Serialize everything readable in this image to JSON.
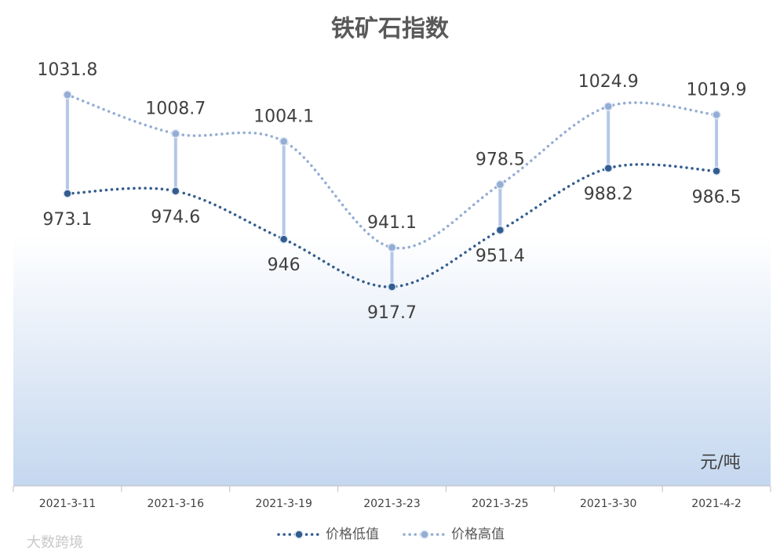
{
  "chart_data": {
    "type": "line",
    "title": "铁矿石指数",
    "unit_label": "元/吨",
    "categories": [
      "2021-3-11",
      "2021-3-16",
      "2021-3-19",
      "2021-3-23",
      "2021-3-25",
      "2021-3-30",
      "2021-4-2"
    ],
    "series": [
      {
        "name": "价格低值",
        "color": "#335d8f",
        "values": [
          973.1,
          974.6,
          946,
          917.7,
          951.4,
          988.2,
          986.5
        ]
      },
      {
        "name": "价格高值",
        "color": "#94add4",
        "values": [
          1031.8,
          1008.7,
          1004.1,
          941.1,
          978.5,
          1024.9,
          1019.9
        ]
      }
    ],
    "high_low_lines": true,
    "smooth": true,
    "legend": "bottom",
    "watermark": "大数跨境"
  }
}
